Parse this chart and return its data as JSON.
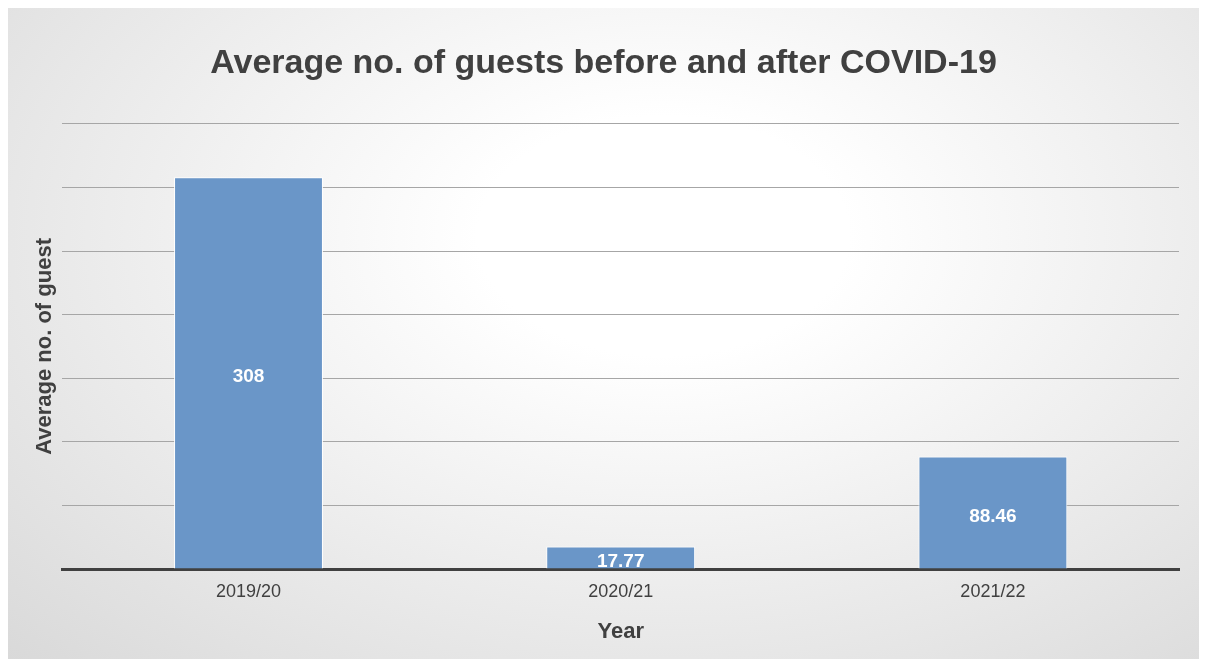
{
  "chart_data": {
    "type": "bar",
    "title": "Average no. of guests before and after COVID-19",
    "xlabel": "Year",
    "ylabel": "Average no. of guest",
    "categories": [
      "2019/20",
      "2020/21",
      "2021/22"
    ],
    "values": [
      308,
      17.77,
      88.46
    ],
    "color": "#6a96c8",
    "ylim": [
      0,
      350
    ],
    "yticks": [
      {
        "value": 0,
        "label": null
      },
      {
        "value": 50,
        "label": null
      },
      {
        "value": 100,
        "label": null
      },
      {
        "value": 150,
        "label": null
      },
      {
        "value": 200,
        "label": null
      },
      {
        "value": 250,
        "label": null
      },
      {
        "value": 300,
        "label": null
      },
      {
        "value": 350,
        "label": null
      }
    ],
    "grid": "y",
    "tick_labels": "x",
    "data_labels": true,
    "legend": false
  }
}
